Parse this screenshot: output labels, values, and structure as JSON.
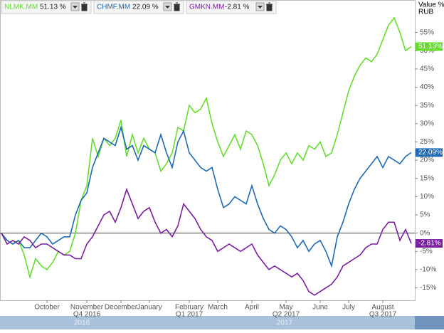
{
  "chart_data": {
    "type": "line",
    "y_axis_title": "Value %",
    "currency": "RUB",
    "categories": [
      null,
      null,
      null,
      null,
      null,
      null,
      null,
      null,
      "October",
      null,
      null,
      null,
      null,
      null,
      null,
      "November",
      null,
      null,
      null,
      null,
      null,
      "December",
      null,
      null,
      null,
      null,
      "January",
      null,
      null,
      null,
      null,
      null,
      null,
      "February",
      null,
      null,
      null,
      null,
      "March",
      null,
      null,
      null,
      null,
      null,
      "April",
      null,
      null,
      null,
      null,
      null,
      "May",
      null,
      null,
      null,
      null,
      null,
      "June",
      null,
      null,
      null,
      null,
      "July",
      null,
      null,
      null,
      null,
      null,
      "August",
      null,
      null,
      null,
      null,
      null
    ],
    "quarter_labels": [
      "Q4 2016",
      "Q1 2017",
      "Q2 2017",
      "Q3 2017"
    ],
    "navigator_labels": [
      "2016",
      "2017"
    ],
    "ylim": [
      -18.4,
      63.9
    ],
    "yticks": [
      {
        "value": 55,
        "label": "55%"
      },
      {
        "value": 50,
        "label": "50%"
      },
      {
        "value": 45,
        "label": "45%"
      },
      {
        "value": 40,
        "label": "40%"
      },
      {
        "value": 35,
        "label": "35%"
      },
      {
        "value": 30,
        "label": "30%"
      },
      {
        "value": 25,
        "label": "25%"
      },
      {
        "value": 20,
        "label": "20%"
      },
      {
        "value": 15,
        "label": "15%"
      },
      {
        "value": 10,
        "label": "10%"
      },
      {
        "value": 5,
        "label": "5%"
      },
      {
        "value": 0,
        "label": "0%"
      },
      {
        "value": -5,
        "label": "-5%"
      },
      {
        "value": -10,
        "label": "-10%"
      },
      {
        "value": -15,
        "label": "-15%"
      }
    ],
    "series": [
      {
        "name": "NLMK.MM",
        "color": "#66dd2e",
        "legend_label": "51.13 %",
        "values": [
          0,
          -2,
          -3,
          -2,
          -6,
          -12,
          -7,
          -9,
          -10,
          -8,
          -5,
          -6,
          -5,
          0,
          9,
          13,
          26,
          21,
          26,
          24,
          26,
          31,
          21,
          27,
          22,
          26,
          23,
          22,
          17,
          19,
          22,
          29,
          28,
          35,
          33,
          34,
          37,
          30,
          25,
          21,
          24,
          27,
          23,
          28,
          27,
          24,
          19,
          13,
          16,
          20,
          22,
          19,
          22,
          20,
          24,
          23,
          25,
          21,
          22,
          27,
          33,
          39,
          43,
          46,
          48,
          47,
          49,
          53,
          57,
          59,
          55,
          50,
          51.13
        ],
        "value_labels": [
          null,
          null,
          null,
          null,
          null,
          null,
          null,
          null,
          null,
          null,
          null,
          null,
          null,
          null,
          null,
          null,
          null,
          null,
          null,
          null,
          null,
          null,
          null,
          null,
          null,
          null,
          null,
          null,
          null,
          null,
          null,
          null,
          null,
          null,
          null,
          null,
          null,
          null,
          null,
          null,
          null,
          null,
          null,
          null,
          null,
          null,
          null,
          null,
          null,
          null,
          null,
          null,
          null,
          null,
          null,
          null,
          null,
          null,
          null,
          null,
          null,
          null,
          null,
          null,
          null,
          null,
          null,
          null,
          null,
          null,
          null,
          null,
          "51.13%"
        ]
      },
      {
        "name": "CHMF.MM",
        "color": "#1f6ab4",
        "legend_label": "22.09 %",
        "values": [
          0,
          -2,
          -3,
          -2,
          -4,
          -4,
          -2,
          0,
          -1,
          -3,
          -2,
          -1,
          -1,
          5,
          9,
          11,
          18,
          22,
          26,
          25,
          24,
          29,
          23,
          24,
          20,
          24,
          23,
          22,
          27,
          22,
          18,
          25,
          28,
          22,
          20,
          18,
          17,
          18,
          12,
          7,
          8,
          10,
          9,
          8,
          13,
          8,
          4,
          1,
          0,
          2,
          1,
          -1,
          -4,
          -2,
          -5,
          -3,
          -2,
          -5,
          -9,
          -1,
          3,
          8,
          12,
          15,
          17,
          19,
          21,
          18,
          21,
          20,
          19,
          21,
          22.09
        ],
        "value_labels": [
          null,
          null,
          null,
          null,
          null,
          null,
          null,
          null,
          null,
          null,
          null,
          null,
          null,
          null,
          null,
          null,
          null,
          null,
          null,
          null,
          null,
          null,
          null,
          null,
          null,
          null,
          null,
          null,
          null,
          null,
          null,
          null,
          null,
          null,
          null,
          null,
          null,
          null,
          null,
          null,
          null,
          null,
          null,
          null,
          null,
          null,
          null,
          null,
          null,
          null,
          null,
          null,
          null,
          null,
          null,
          null,
          null,
          null,
          null,
          null,
          null,
          null,
          null,
          null,
          null,
          null,
          null,
          null,
          null,
          null,
          null,
          null,
          "22.09%"
        ]
      },
      {
        "name": "GMKN.MM",
        "color": "#7a1fa0",
        "legend_label": "-2.81 %",
        "values": [
          0,
          -3,
          -2,
          -3,
          -1,
          -2,
          -4,
          -3,
          -3,
          -4,
          -5,
          -6,
          -6,
          -7,
          -7,
          -3,
          -1,
          2,
          5,
          6,
          3,
          7,
          12,
          8,
          4,
          6,
          7,
          3,
          0,
          1,
          -1,
          2,
          8,
          6,
          4,
          1,
          -1,
          -2,
          -5,
          -4,
          -3,
          -4,
          -5,
          -4,
          -3,
          -6,
          -8,
          -10,
          -9,
          -10,
          -11,
          -12,
          -11,
          -13,
          -16,
          -17,
          -16,
          -15,
          -14,
          -12,
          -9,
          -8,
          -7,
          -6,
          -4,
          -3,
          -3,
          1,
          3,
          3,
          -2,
          1,
          -2.81
        ],
        "value_labels": [
          null,
          null,
          null,
          null,
          null,
          null,
          null,
          null,
          null,
          null,
          null,
          null,
          null,
          null,
          null,
          null,
          null,
          null,
          null,
          null,
          null,
          null,
          null,
          null,
          null,
          null,
          null,
          null,
          null,
          null,
          null,
          null,
          null,
          null,
          null,
          null,
          null,
          null,
          null,
          null,
          null,
          null,
          null,
          null,
          null,
          null,
          null,
          null,
          null,
          null,
          null,
          null,
          null,
          null,
          null,
          null,
          null,
          null,
          null,
          null,
          null,
          null,
          null,
          null,
          null,
          null,
          null,
          null,
          null,
          null,
          null,
          null,
          "-2.81%"
        ]
      }
    ]
  }
}
